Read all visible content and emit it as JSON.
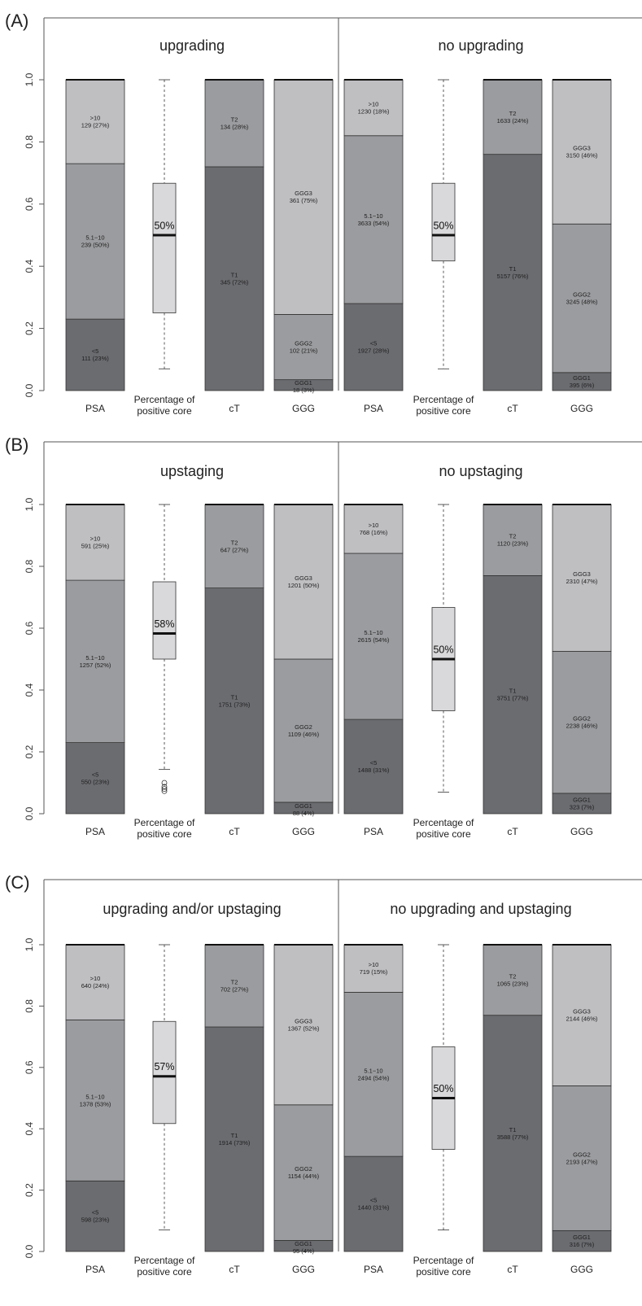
{
  "chart_data": [
    {
      "type": "bar",
      "panel": "(A)",
      "ylim": [
        0,
        1
      ],
      "yticks": [
        "0.0",
        "0.2",
        "0.4",
        "0.6",
        "0.8",
        "1.0"
      ],
      "groups": [
        {
          "title": "upgrading",
          "bars": [
            {
              "category": "PSA",
              "segments": [
                {
                  "label": "<5",
                  "count_text": "111 (23%)",
                  "value": 0.23
                },
                {
                  "label": "5.1−10",
                  "count_text": "239 (50%)",
                  "value": 0.5
                },
                {
                  "label": ">10",
                  "count_text": "129 (27%)",
                  "value": 0.27
                }
              ]
            },
            {
              "category": "Percentage of positive core",
              "boxplot": {
                "whisker_low": 0.07,
                "q1": 0.25,
                "median": 0.5,
                "q3": 0.667,
                "whisker_high": 1.0,
                "median_label": "50%",
                "outliers": []
              }
            },
            {
              "category": "cT",
              "segments": [
                {
                  "label": "T1",
                  "count_text": "345 (72%)",
                  "value": 0.72
                },
                {
                  "label": "T2",
                  "count_text": "134 (28%)",
                  "value": 0.28
                }
              ]
            },
            {
              "category": "GGG",
              "segments": [
                {
                  "label": "GGG1",
                  "count_text": "18 (3%)",
                  "value": 0.035
                },
                {
                  "label": "GGG2",
                  "count_text": "102 (21%)",
                  "value": 0.21
                },
                {
                  "label": "GGG3",
                  "count_text": "361 (75%)",
                  "value": 0.755
                }
              ]
            }
          ]
        },
        {
          "title": "no upgrading",
          "bars": [
            {
              "category": "PSA",
              "segments": [
                {
                  "label": "<5",
                  "count_text": "1927 (28%)",
                  "value": 0.28
                },
                {
                  "label": "5.1−10",
                  "count_text": "3633 (54%)",
                  "value": 0.54
                },
                {
                  "label": ">10",
                  "count_text": "1230 (18%)",
                  "value": 0.18
                }
              ]
            },
            {
              "category": "Percentage of positive core",
              "boxplot": {
                "whisker_low": 0.07,
                "q1": 0.417,
                "median": 0.5,
                "q3": 0.667,
                "whisker_high": 1.0,
                "median_label": "50%",
                "outliers": []
              }
            },
            {
              "category": "cT",
              "segments": [
                {
                  "label": "T1",
                  "count_text": "5157 (76%)",
                  "value": 0.76
                },
                {
                  "label": "T2",
                  "count_text": "1633 (24%)",
                  "value": 0.24
                }
              ]
            },
            {
              "category": "GGG",
              "segments": [
                {
                  "label": "GGG1",
                  "count_text": "395 (6%)",
                  "value": 0.058
                },
                {
                  "label": "GGG2",
                  "count_text": "3245 (48%)",
                  "value": 0.478
                },
                {
                  "label": "GGG3",
                  "count_text": "3150 (46%)",
                  "value": 0.464
                }
              ]
            }
          ]
        }
      ]
    },
    {
      "type": "bar",
      "panel": "(B)",
      "ylim": [
        0,
        1
      ],
      "yticks": [
        "0.0",
        "0.2",
        "0.4",
        "0.6",
        "0.8",
        "1.0"
      ],
      "groups": [
        {
          "title": "upstaging",
          "bars": [
            {
              "category": "PSA",
              "segments": [
                {
                  "label": "<5",
                  "count_text": "550 (23%)",
                  "value": 0.23
                },
                {
                  "label": "5.1−10",
                  "count_text": "1257 (52%)",
                  "value": 0.525
                },
                {
                  "label": ">10",
                  "count_text": "591 (25%)",
                  "value": 0.245
                }
              ]
            },
            {
              "category": "Percentage of positive core",
              "boxplot": {
                "whisker_low": 0.143,
                "q1": 0.5,
                "median": 0.583,
                "q3": 0.75,
                "whisker_high": 1.0,
                "median_label": "58%",
                "outliers": [
                  0.073,
                  0.08,
                  0.087,
                  0.1
                ]
              }
            },
            {
              "category": "cT",
              "segments": [
                {
                  "label": "T1",
                  "count_text": "1751 (73%)",
                  "value": 0.73
                },
                {
                  "label": "T2",
                  "count_text": "647 (27%)",
                  "value": 0.27
                }
              ]
            },
            {
              "category": "GGG",
              "segments": [
                {
                  "label": "GGG1",
                  "count_text": "88 (4%)",
                  "value": 0.037
                },
                {
                  "label": "GGG2",
                  "count_text": "1109 (46%)",
                  "value": 0.463
                },
                {
                  "label": "GGG3",
                  "count_text": "1201 (50%)",
                  "value": 0.5
                }
              ]
            }
          ]
        },
        {
          "title": "no upstaging",
          "bars": [
            {
              "category": "PSA",
              "segments": [
                {
                  "label": "<5",
                  "count_text": "1488 (31%)",
                  "value": 0.305
                },
                {
                  "label": "5.1−10",
                  "count_text": "2615 (54%)",
                  "value": 0.537
                },
                {
                  "label": ">10",
                  "count_text": "768 (16%)",
                  "value": 0.158
                }
              ]
            },
            {
              "category": "Percentage of positive core",
              "boxplot": {
                "whisker_low": 0.07,
                "q1": 0.333,
                "median": 0.5,
                "q3": 0.667,
                "whisker_high": 1.0,
                "median_label": "50%",
                "outliers": []
              }
            },
            {
              "category": "cT",
              "segments": [
                {
                  "label": "T1",
                  "count_text": "3751 (77%)",
                  "value": 0.77
                },
                {
                  "label": "T2",
                  "count_text": "1120 (23%)",
                  "value": 0.23
                }
              ]
            },
            {
              "category": "GGG",
              "segments": [
                {
                  "label": "GGG1",
                  "count_text": "323 (7%)",
                  "value": 0.066
                },
                {
                  "label": "GGG2",
                  "count_text": "2238 (46%)",
                  "value": 0.459
                },
                {
                  "label": "GGG3",
                  "count_text": "2310 (47%)",
                  "value": 0.475
                }
              ]
            }
          ]
        }
      ]
    },
    {
      "type": "bar",
      "panel": "(C)",
      "ylim": [
        0,
        1
      ],
      "yticks": [
        "0.0",
        "0.2",
        "0.4",
        "0.6",
        "0.8",
        "1.0"
      ],
      "groups": [
        {
          "title": "upgrading and/or upstaging",
          "bars": [
            {
              "category": "PSA",
              "segments": [
                {
                  "label": "<5",
                  "count_text": "598 (23%)",
                  "value": 0.23
                },
                {
                  "label": "5.1−10",
                  "count_text": "1378 (53%)",
                  "value": 0.525
                },
                {
                  "label": ">10",
                  "count_text": "640 (24%)",
                  "value": 0.245
                }
              ]
            },
            {
              "category": "Percentage of positive core",
              "boxplot": {
                "whisker_low": 0.07,
                "q1": 0.417,
                "median": 0.571,
                "q3": 0.75,
                "whisker_high": 1.0,
                "median_label": "57%",
                "outliers": []
              }
            },
            {
              "category": "cT",
              "segments": [
                {
                  "label": "T1",
                  "count_text": "1914 (73%)",
                  "value": 0.732
                },
                {
                  "label": "T2",
                  "count_text": "702 (27%)",
                  "value": 0.268
                }
              ]
            },
            {
              "category": "GGG",
              "segments": [
                {
                  "label": "GGG1",
                  "count_text": "95 (4%)",
                  "value": 0.036
                },
                {
                  "label": "GGG2",
                  "count_text": "1154 (44%)",
                  "value": 0.442
                },
                {
                  "label": "GGG3",
                  "count_text": "1367 (52%)",
                  "value": 0.522
                }
              ]
            }
          ]
        },
        {
          "title": "no upgrading and upstaging",
          "bars": [
            {
              "category": "PSA",
              "segments": [
                {
                  "label": "<5",
                  "count_text": "1440 (31%)",
                  "value": 0.31
                },
                {
                  "label": "5.1−10",
                  "count_text": "2494 (54%)",
                  "value": 0.535
                },
                {
                  "label": ">10",
                  "count_text": "719 (15%)",
                  "value": 0.155
                }
              ]
            },
            {
              "category": "Percentage of positive core",
              "boxplot": {
                "whisker_low": 0.07,
                "q1": 0.333,
                "median": 0.5,
                "q3": 0.667,
                "whisker_high": 1.0,
                "median_label": "50%",
                "outliers": []
              }
            },
            {
              "category": "cT",
              "segments": [
                {
                  "label": "T1",
                  "count_text": "3588 (77%)",
                  "value": 0.77
                },
                {
                  "label": "T2",
                  "count_text": "1065 (23%)",
                  "value": 0.23
                }
              ]
            },
            {
              "category": "GGG",
              "segments": [
                {
                  "label": "GGG1",
                  "count_text": "316 (7%)",
                  "value": 0.068
                },
                {
                  "label": "GGG2",
                  "count_text": "2193 (47%)",
                  "value": 0.472
                },
                {
                  "label": "GGG3",
                  "count_text": "2144 (46%)",
                  "value": 0.46
                }
              ]
            }
          ]
        }
      ]
    }
  ],
  "colors": {
    "level1": "#6b6c70",
    "level2": "#9b9c9f",
    "level3": "#bfbfc2",
    "boxplot_fill": "#d9d9db",
    "outline": "#333333",
    "frame": "#555555"
  }
}
